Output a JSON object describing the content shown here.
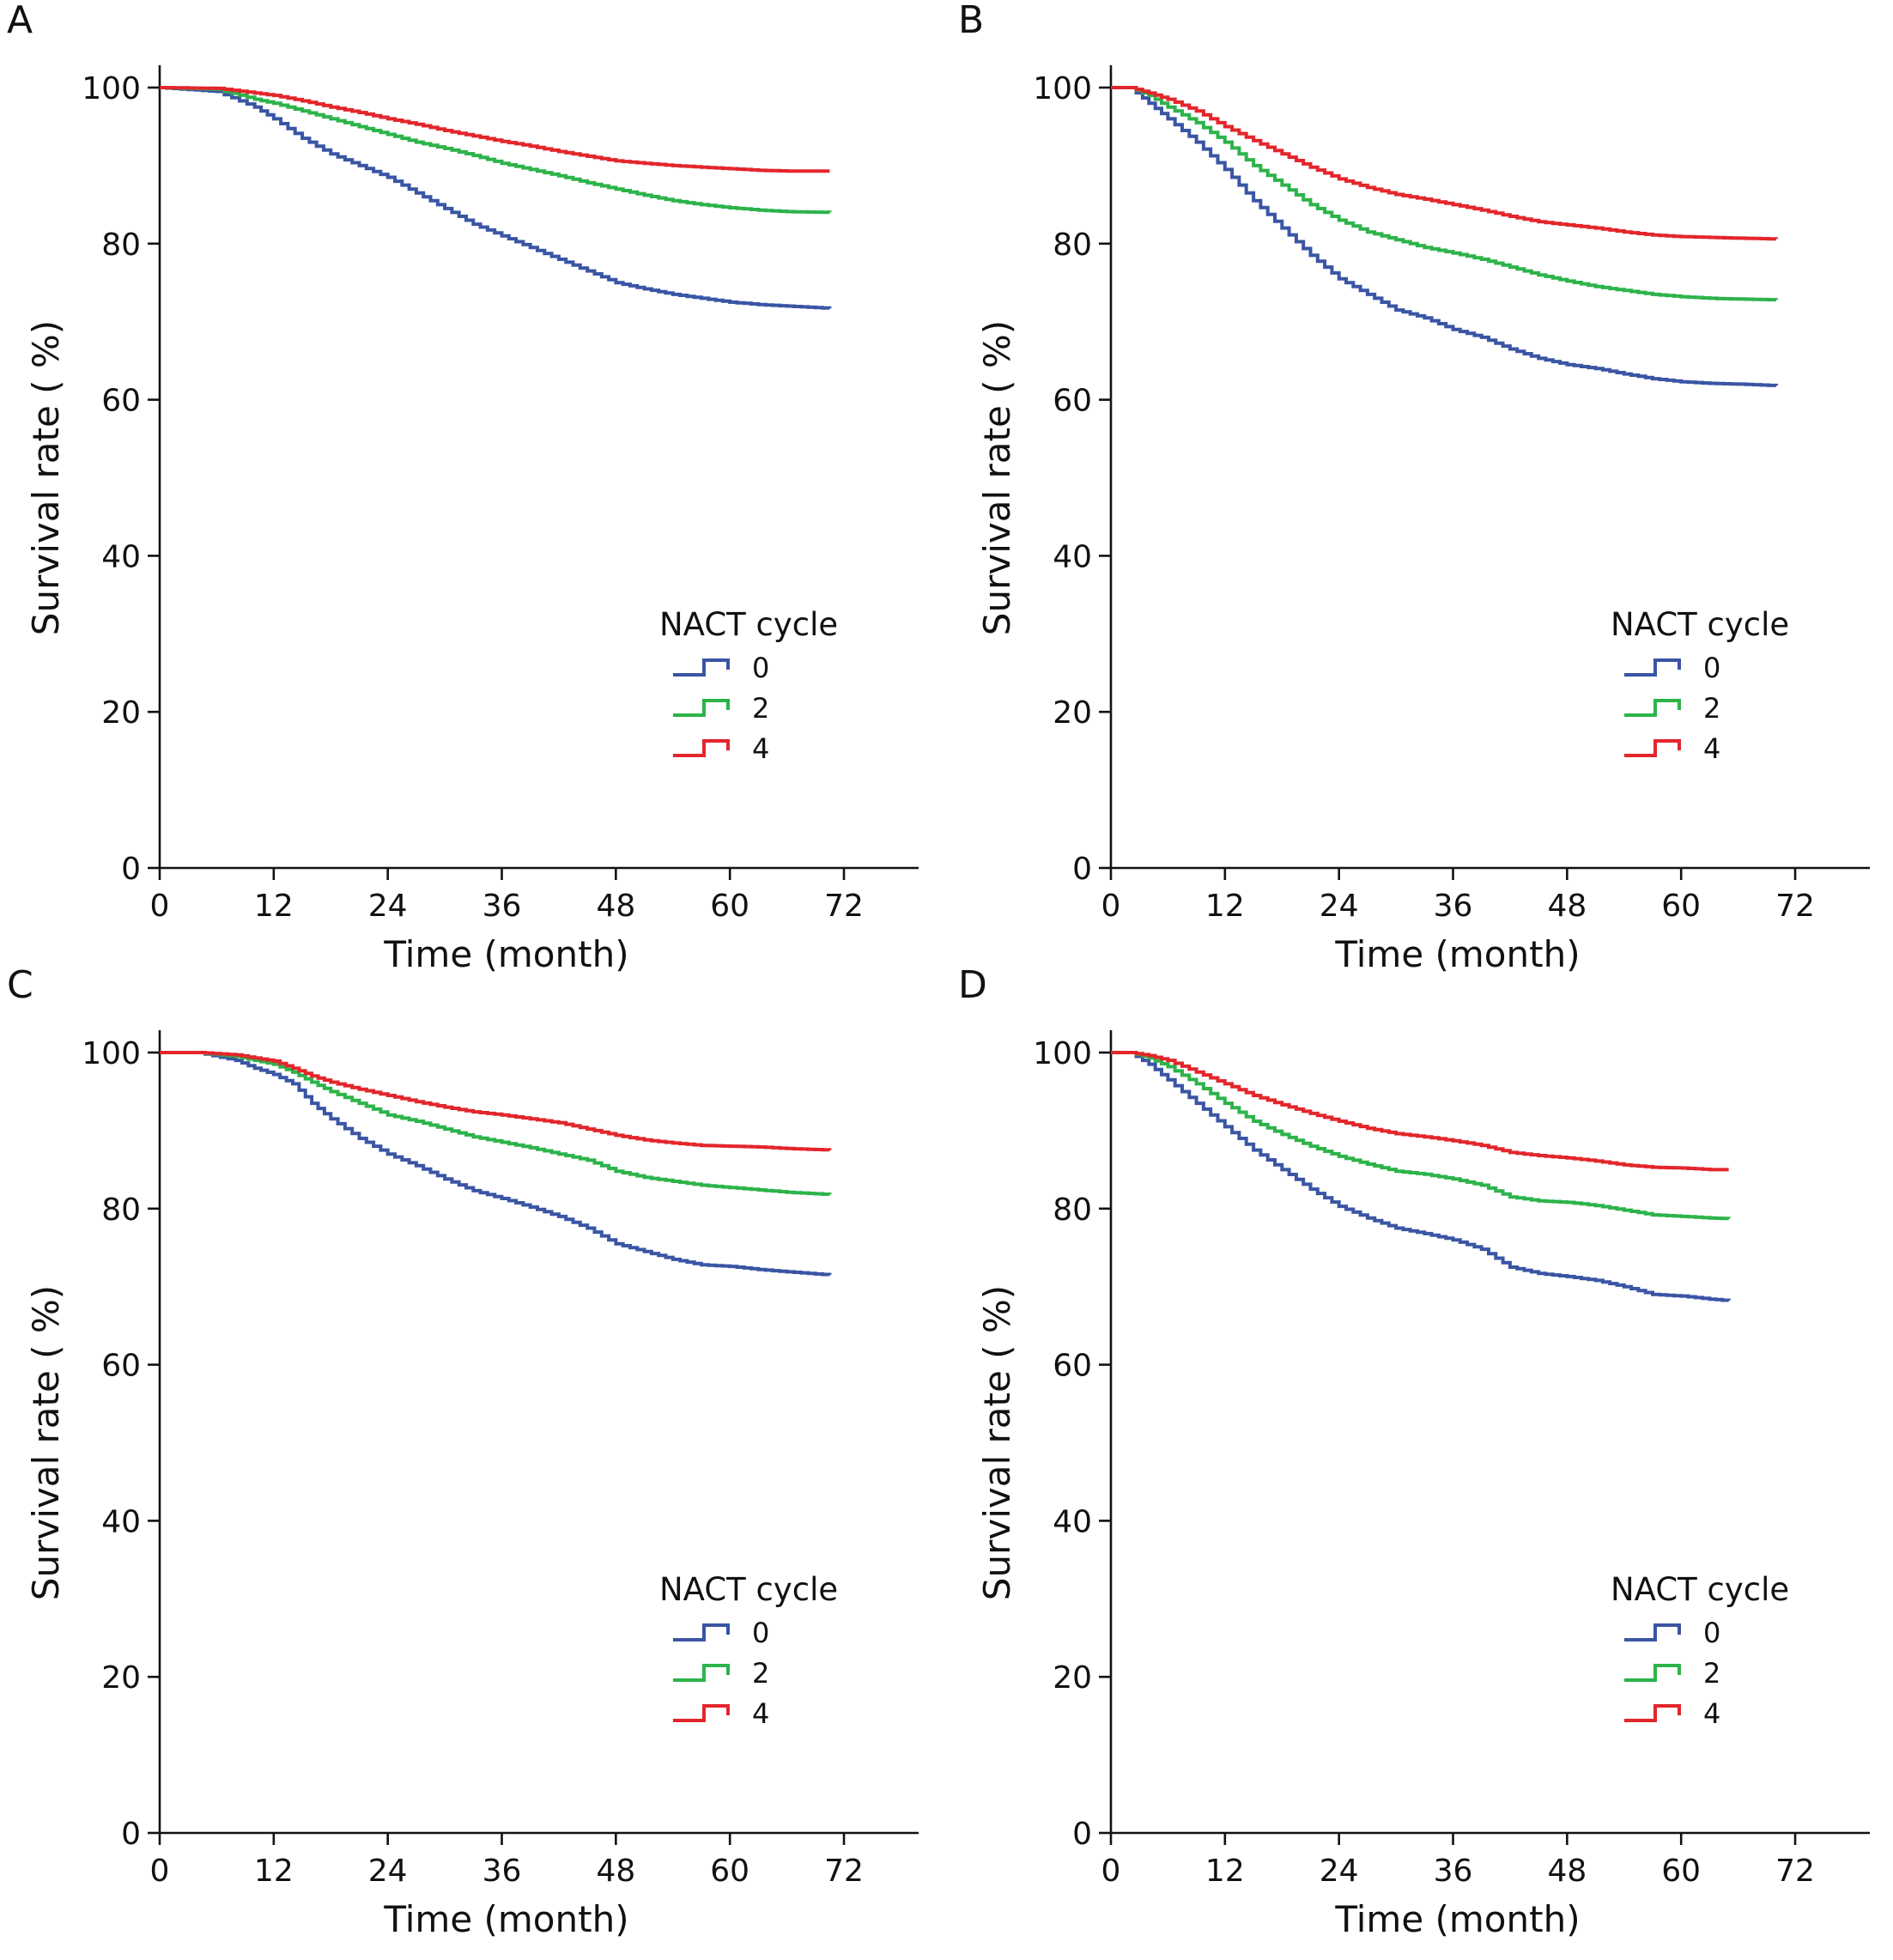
{
  "colors": {
    "0": "#3a55a4",
    "2": "#2db34a",
    "4": "#e3262b"
  },
  "chart_data": [
    {
      "type": "line",
      "panel": "A",
      "xlabel": "Time (month)",
      "ylabel": "Survival rate ( %)",
      "xticks": [
        0,
        12,
        24,
        36,
        48,
        60,
        72
      ],
      "yticks": [
        0,
        20,
        40,
        60,
        80,
        100
      ],
      "xlim": [
        0,
        80
      ],
      "ylim": [
        0,
        102
      ],
      "legend": {
        "title": "NACT cycle",
        "position": "lower-right"
      },
      "series": [
        {
          "name": "0",
          "color": "#3a55a4",
          "x": [
            0,
            6,
            10,
            12,
            15,
            18,
            21,
            24,
            27,
            30,
            33,
            36,
            39,
            42,
            45,
            48,
            51,
            54,
            57,
            60,
            63,
            66,
            70.5
          ],
          "y": [
            100,
            99.5,
            97.5,
            96,
            93.5,
            91.5,
            90,
            88.5,
            86.5,
            84.5,
            82.5,
            81,
            79.5,
            78,
            76.5,
            75,
            74.2,
            73.5,
            73,
            72.5,
            72.2,
            72,
            71.7
          ]
        },
        {
          "name": "2",
          "color": "#2db34a",
          "x": [
            0,
            6,
            10,
            12,
            15,
            18,
            21,
            24,
            27,
            30,
            33,
            36,
            39,
            42,
            45,
            48,
            51,
            54,
            57,
            60,
            63,
            66,
            70.5
          ],
          "y": [
            100,
            99.8,
            98.5,
            98,
            97,
            96,
            95,
            94,
            93,
            92.2,
            91.3,
            90.3,
            89.5,
            88.7,
            87.8,
            87,
            86.2,
            85.5,
            85,
            84.6,
            84.3,
            84.1,
            84
          ]
        },
        {
          "name": "4",
          "color": "#e3262b",
          "x": [
            0,
            6,
            10,
            12,
            15,
            18,
            21,
            24,
            27,
            30,
            33,
            36,
            39,
            42,
            45,
            48,
            51,
            54,
            57,
            60,
            63,
            66,
            70.5
          ],
          "y": [
            100,
            99.9,
            99.3,
            99,
            98.3,
            97.5,
            96.8,
            96,
            95.3,
            94.5,
            93.8,
            93.1,
            92.5,
            91.8,
            91.2,
            90.6,
            90.3,
            90,
            89.8,
            89.6,
            89.4,
            89.3,
            89.3
          ]
        }
      ]
    },
    {
      "type": "line",
      "panel": "B",
      "xlabel": "Time (month)",
      "ylabel": "Survival rate ( %)",
      "xticks": [
        0,
        12,
        24,
        36,
        48,
        60,
        72
      ],
      "yticks": [
        0,
        20,
        40,
        60,
        80,
        100
      ],
      "xlim": [
        0,
        80
      ],
      "ylim": [
        0,
        102
      ],
      "legend": {
        "title": "NACT cycle",
        "position": "lower-right"
      },
      "series": [
        {
          "name": "0",
          "color": "#3a55a4",
          "x": [
            0,
            2,
            4,
            6,
            9,
            12,
            15,
            18,
            21,
            24,
            27,
            30,
            33,
            36,
            39,
            42,
            45,
            48,
            51,
            54,
            57,
            60,
            63,
            66,
            70
          ],
          "y": [
            100,
            100,
            98,
            96,
            93,
            89.5,
            85.5,
            82,
            78.5,
            75.5,
            73.5,
            71.5,
            70.5,
            69,
            68,
            66.5,
            65.3,
            64.5,
            64,
            63.3,
            62.7,
            62.3,
            62.1,
            62,
            61.8
          ]
        },
        {
          "name": "2",
          "color": "#2db34a",
          "x": [
            0,
            2,
            4,
            6,
            9,
            12,
            15,
            18,
            21,
            24,
            27,
            30,
            33,
            36,
            39,
            42,
            45,
            48,
            51,
            54,
            57,
            60,
            63,
            66,
            70
          ],
          "y": [
            100,
            100,
            99,
            97.5,
            95.5,
            93,
            90,
            87.5,
            85,
            83,
            81.5,
            80.5,
            79.5,
            78.8,
            78,
            77,
            76,
            75.2,
            74.5,
            74,
            73.5,
            73.2,
            73,
            72.9,
            72.8
          ]
        },
        {
          "name": "4",
          "color": "#e3262b",
          "x": [
            0,
            2,
            4,
            6,
            9,
            12,
            15,
            18,
            21,
            24,
            27,
            30,
            33,
            36,
            39,
            42,
            45,
            48,
            51,
            54,
            57,
            60,
            63,
            66,
            70
          ],
          "y": [
            100,
            100,
            99.3,
            98.5,
            97,
            95,
            93.2,
            91.5,
            89.8,
            88.3,
            87.2,
            86.3,
            85.7,
            85,
            84.3,
            83.5,
            82.8,
            82.4,
            82,
            81.5,
            81.1,
            80.9,
            80.8,
            80.7,
            80.6
          ]
        }
      ]
    },
    {
      "type": "line",
      "panel": "C",
      "xlabel": "Time (month)",
      "ylabel": "Survival rate ( %)",
      "xticks": [
        0,
        12,
        24,
        36,
        48,
        60,
        72
      ],
      "yticks": [
        0,
        20,
        40,
        60,
        80,
        100
      ],
      "xlim": [
        0,
        80
      ],
      "ylim": [
        0,
        102
      ],
      "legend": {
        "title": "NACT cycle",
        "position": "lower-right"
      },
      "series": [
        {
          "name": "0",
          "color": "#3a55a4",
          "x": [
            0,
            4,
            8,
            10,
            12,
            14,
            16,
            18,
            21,
            24,
            27,
            30,
            33,
            36,
            39,
            42,
            45,
            48,
            51,
            54,
            57,
            60,
            63,
            66,
            70.5
          ],
          "y": [
            100,
            100,
            99,
            98,
            97.2,
            96,
            93.5,
            91.5,
            89,
            87,
            85.5,
            83.8,
            82.3,
            81.3,
            80.2,
            79,
            77.5,
            75.5,
            74.5,
            73.5,
            72.8,
            72.6,
            72.2,
            71.9,
            71.5
          ]
        },
        {
          "name": "2",
          "color": "#2db34a",
          "x": [
            0,
            4,
            8,
            10,
            12,
            14,
            16,
            18,
            21,
            24,
            27,
            30,
            33,
            36,
            39,
            42,
            45,
            48,
            51,
            54,
            57,
            60,
            63,
            66,
            70.5
          ],
          "y": [
            100,
            100,
            99.5,
            99,
            98.5,
            97.5,
            96.2,
            95,
            93.5,
            92,
            91.2,
            90.2,
            89.2,
            88.5,
            87.8,
            87,
            86.2,
            84.8,
            84,
            83.5,
            83,
            82.7,
            82.4,
            82.1,
            81.8
          ]
        },
        {
          "name": "4",
          "color": "#e3262b",
          "x": [
            0,
            4,
            8,
            10,
            12,
            14,
            16,
            18,
            21,
            24,
            27,
            30,
            33,
            36,
            39,
            42,
            45,
            48,
            51,
            54,
            57,
            60,
            63,
            66,
            70.5
          ],
          "y": [
            100,
            100,
            99.7,
            99.3,
            98.9,
            98,
            97,
            96.2,
            95.3,
            94.5,
            93.7,
            93,
            92.4,
            92,
            91.5,
            91,
            90.2,
            89.4,
            88.8,
            88.4,
            88.1,
            88,
            87.9,
            87.7,
            87.5
          ]
        }
      ]
    },
    {
      "type": "line",
      "panel": "D",
      "xlabel": "Time (month)",
      "ylabel": "Survival rate ( %)",
      "xticks": [
        0,
        12,
        24,
        36,
        48,
        60,
        72
      ],
      "yticks": [
        0,
        20,
        40,
        60,
        80,
        100
      ],
      "xlim": [
        0,
        80
      ],
      "ylim": [
        0,
        102
      ],
      "legend": {
        "title": "NACT cycle",
        "position": "lower-right"
      },
      "series": [
        {
          "name": "0",
          "color": "#3a55a4",
          "x": [
            0,
            2,
            4,
            6,
            9,
            12,
            15,
            18,
            21,
            24,
            27,
            30,
            33,
            36,
            39,
            42,
            45,
            48,
            51,
            54,
            57,
            60,
            63,
            65
          ],
          "y": [
            100,
            100,
            98.5,
            96.5,
            93.5,
            90.5,
            87.5,
            85,
            82.5,
            80.3,
            78.8,
            77.5,
            76.8,
            76,
            74.8,
            72.5,
            71.7,
            71.3,
            70.8,
            70,
            69,
            68.8,
            68.4,
            68.2
          ]
        },
        {
          "name": "2",
          "color": "#2db34a",
          "x": [
            0,
            2,
            4,
            6,
            9,
            12,
            15,
            18,
            21,
            24,
            27,
            30,
            33,
            36,
            39,
            42,
            45,
            48,
            51,
            54,
            57,
            60,
            63,
            65
          ],
          "y": [
            100,
            100,
            99.3,
            98.2,
            96,
            93.5,
            91.2,
            89.5,
            88,
            86.7,
            85.7,
            84.8,
            84.4,
            83.8,
            83,
            81.5,
            81,
            80.8,
            80.4,
            79.8,
            79.2,
            79,
            78.8,
            78.7
          ]
        },
        {
          "name": "4",
          "color": "#e3262b",
          "x": [
            0,
            2,
            4,
            6,
            9,
            12,
            15,
            18,
            21,
            24,
            27,
            30,
            33,
            36,
            39,
            42,
            45,
            48,
            51,
            54,
            57,
            60,
            63,
            65
          ],
          "y": [
            100,
            100,
            99.6,
            99,
            97.5,
            96,
            94.5,
            93.3,
            92.2,
            91.2,
            90.3,
            89.6,
            89.2,
            88.7,
            88.1,
            87.2,
            86.8,
            86.5,
            86.1,
            85.6,
            85.3,
            85.2,
            85,
            85
          ]
        }
      ]
    }
  ]
}
